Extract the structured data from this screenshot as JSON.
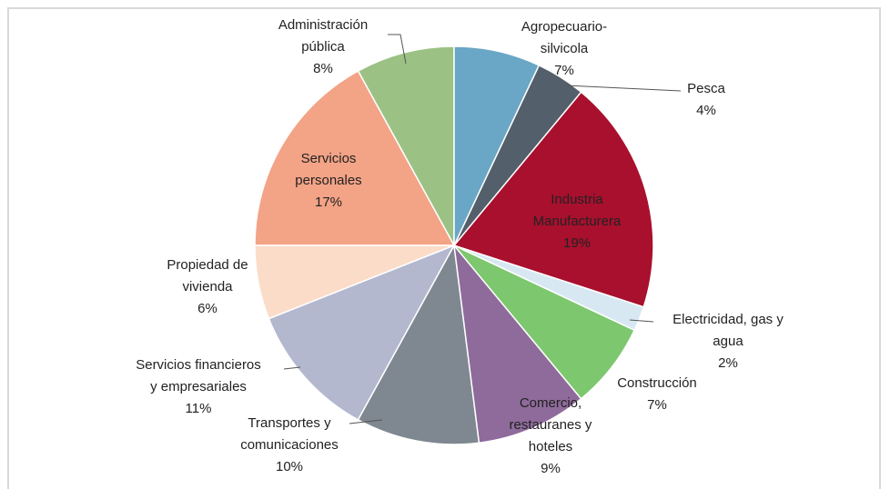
{
  "chart_data": {
    "type": "pie",
    "categories": [
      "Agropecuario-\nsilvicola",
      "Pesca",
      "Industria\nManufacturera",
      "Electricidad, gas y\nagua",
      "Construcción",
      "Comercio,\nrestauranes y\nhoteles",
      "Transportes y\ncomunicaciones",
      "Servicios financieros\ny empresariales",
      "Propiedad de\nvivienda",
      "Servicios\npersonales",
      "Administración\npública"
    ],
    "values": [
      7,
      4,
      19,
      2,
      7,
      9,
      10,
      11,
      6,
      17,
      8
    ],
    "value_labels": [
      "7%",
      "4%",
      "19%",
      "2%",
      "7%",
      "9%",
      "10%",
      "11%",
      "6%",
      "17%",
      "8%"
    ],
    "colors": [
      "#6aa6c5",
      "#535f6b",
      "#a8102e",
      "#d8e8f3",
      "#7dc76e",
      "#8e6b9b",
      "#7f8891",
      "#b3b8cf",
      "#fbdcc9",
      "#f3a386",
      "#9bc284"
    ]
  }
}
